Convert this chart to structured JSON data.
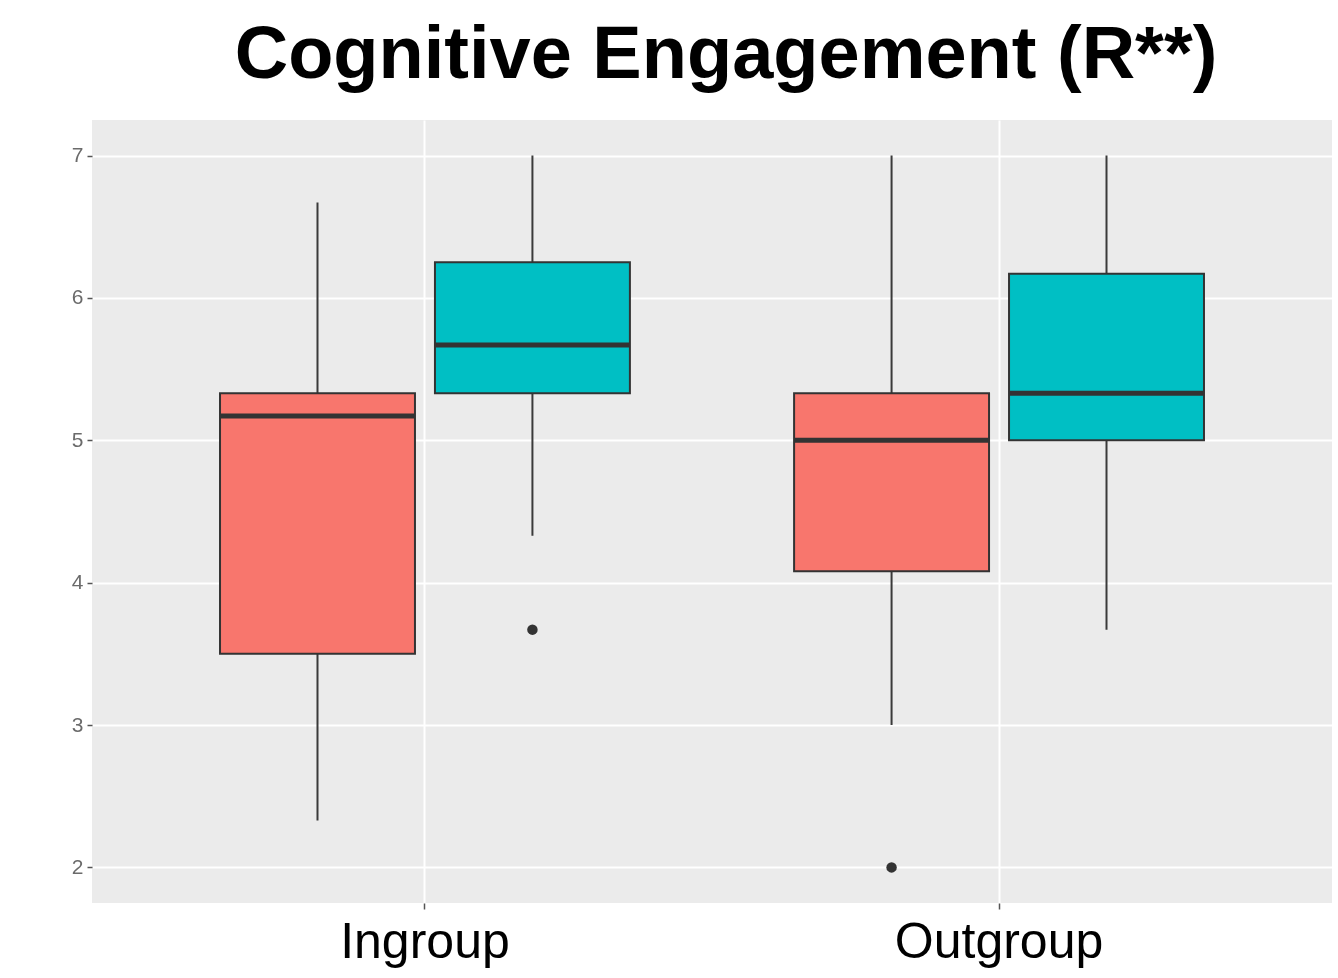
{
  "chart_data": {
    "type": "box",
    "title": "Cognitive Engagement (R**)",
    "categories": [
      "Ingroup",
      "Outgroup"
    ],
    "series": [
      {
        "color": "#f8766d",
        "boxes": [
          {
            "low": 2.33,
            "q1": 3.5,
            "median": 5.17,
            "q3": 5.33,
            "high": 6.67
          },
          {
            "low": 3,
            "q1": 4.08,
            "median": 5,
            "q3": 5.33,
            "high": 7,
            "outliers": [
              2
            ]
          }
        ]
      },
      {
        "color": "#00bfc4",
        "boxes": [
          {
            "low": 4.33,
            "q1": 5.33,
            "median": 5.67,
            "q3": 6.25,
            "high": 7,
            "outliers": [
              3.67
            ]
          },
          {
            "low": 3.67,
            "q1": 5,
            "median": 5.33,
            "q3": 6.17,
            "high": 7
          }
        ]
      }
    ],
    "ylim": [
      1.75,
      7.25
    ],
    "yticks": [
      2,
      3,
      4,
      5,
      6,
      7
    ],
    "grid": true
  }
}
